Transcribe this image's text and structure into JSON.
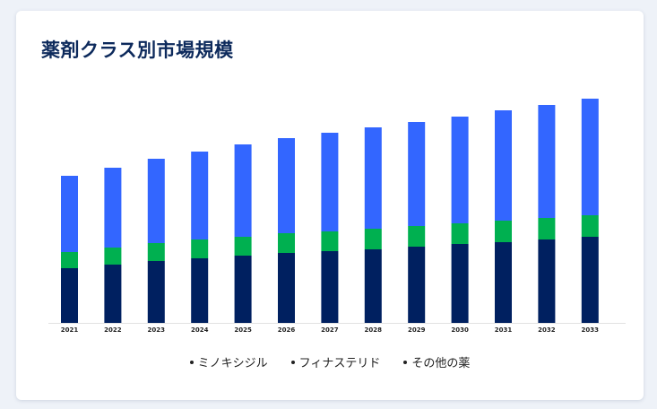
{
  "title": "薬剤クラス別市場規模",
  "chart_data": {
    "type": "bar",
    "stacked": true,
    "title": "薬剤クラス別市場規模",
    "xlabel": "",
    "ylabel": "",
    "ylim": [
      0,
      250
    ],
    "grid": false,
    "legend_position": "bottom",
    "categories": [
      "2021",
      "2022",
      "2023",
      "2024",
      "2025",
      "2026",
      "2027",
      "2028",
      "2029",
      "2030",
      "2031",
      "2032",
      "2033"
    ],
    "series": [
      {
        "name": "その他の薬",
        "color": "#002060",
        "values": [
          61,
          65,
          69,
          72,
          75,
          78,
          80,
          82,
          85,
          88,
          90,
          93,
          96
        ]
      },
      {
        "name": "フィナステリド",
        "color": "#00b050",
        "values": [
          18,
          19,
          20,
          21,
          21,
          22,
          22,
          23,
          23,
          23,
          24,
          24,
          24
        ]
      },
      {
        "name": "ミノキシジル",
        "color": "#3366ff",
        "values": [
          85,
          89,
          94,
          98,
          103,
          106,
          110,
          113,
          116,
          119,
          123,
          126,
          130
        ]
      }
    ]
  },
  "legend": [
    {
      "label": "ミノキシジル",
      "color": "#3366ff"
    },
    {
      "label": "フィナステリド",
      "color": "#00b050"
    },
    {
      "label": "その他の薬",
      "color": "#002060"
    }
  ]
}
